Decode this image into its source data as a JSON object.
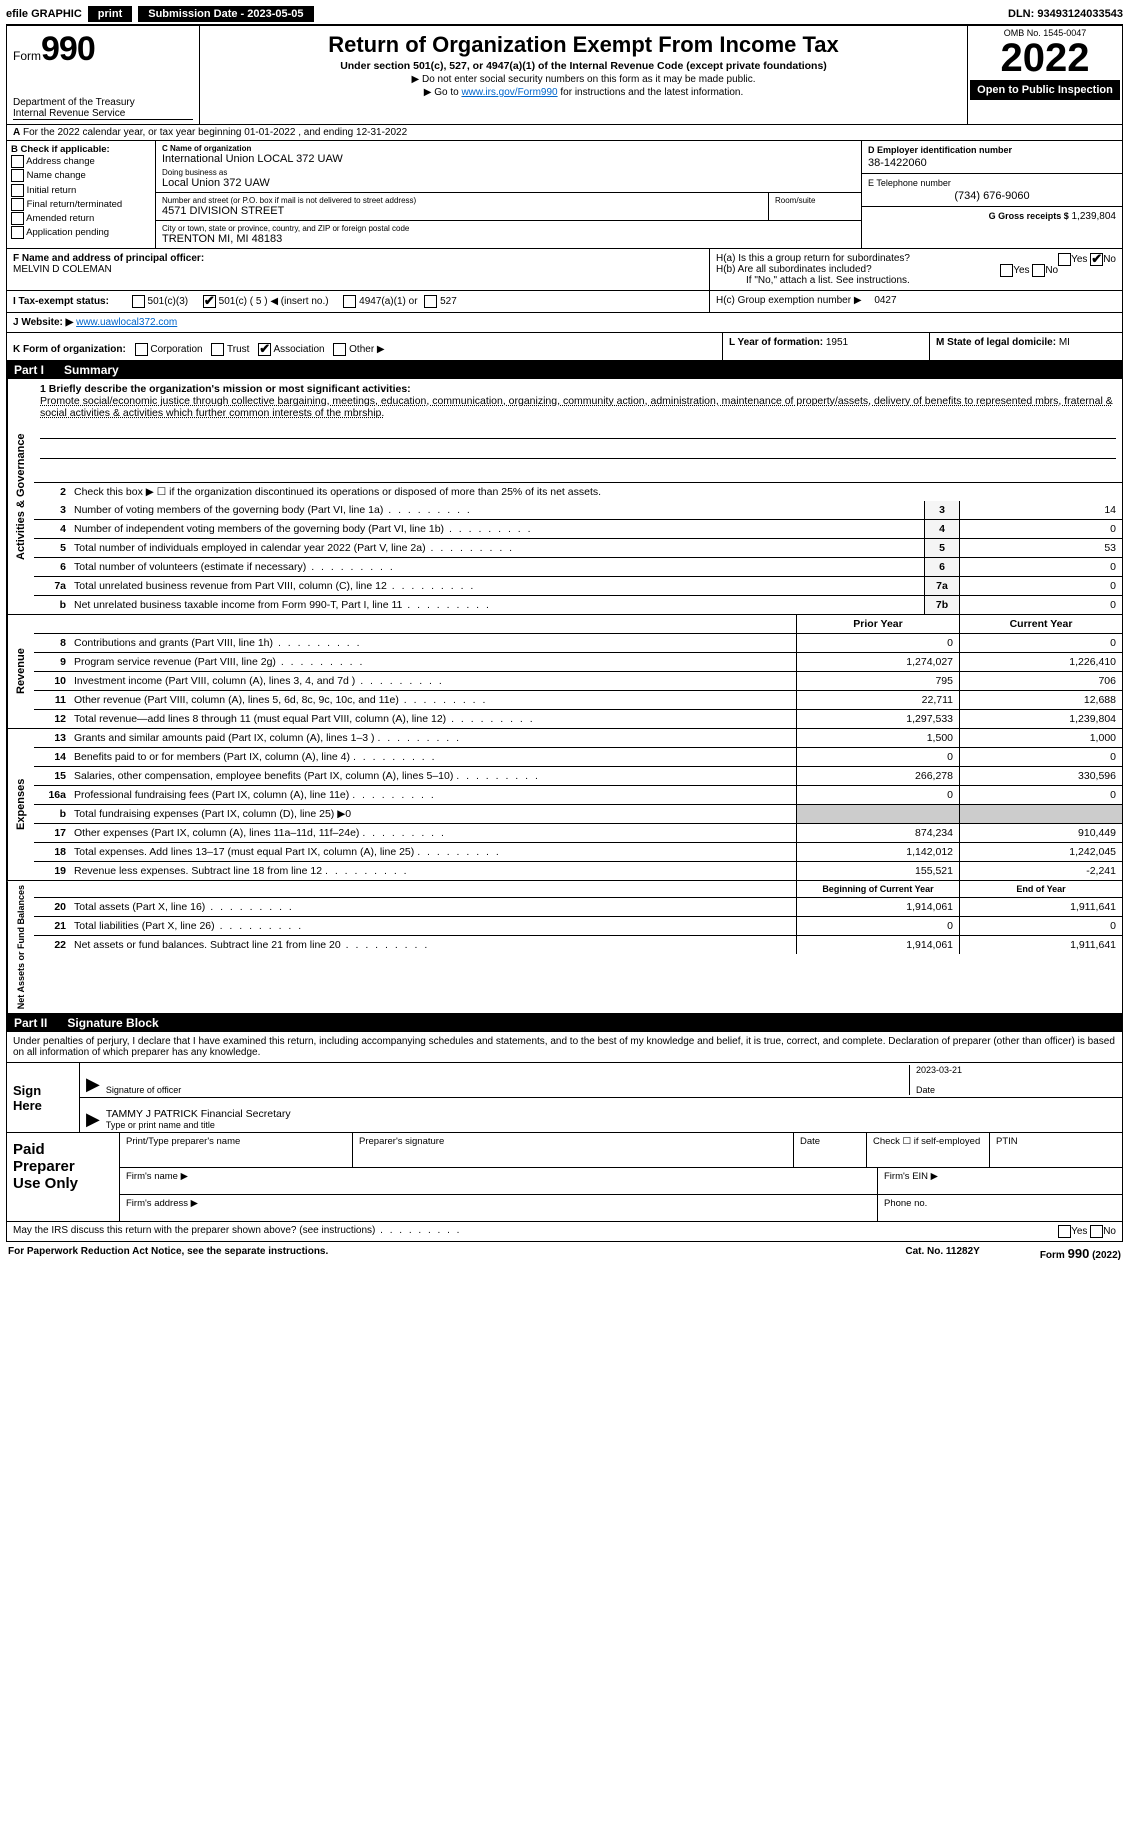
{
  "topbar": {
    "efile": "efile GRAPHIC",
    "print": "print",
    "submission_label": "Submission Date - 2023-05-05",
    "dln": "DLN: 93493124033543"
  },
  "header": {
    "form_word": "Form",
    "form_num": "990",
    "title": "Return of Organization Exempt From Income Tax",
    "subtitle": "Under section 501(c), 527, or 4947(a)(1) of the Internal Revenue Code (except private foundations)",
    "note1": "▶ Do not enter social security numbers on this form as it may be made public.",
    "note2_pre": "▶ Go to ",
    "note2_link": "www.irs.gov/Form990",
    "note2_post": " for instructions and the latest information.",
    "dept1": "Department of the Treasury",
    "dept2": "Internal Revenue Service",
    "omb": "OMB No. 1545-0047",
    "year": "2022",
    "open": "Open to Public Inspection"
  },
  "rowA": {
    "label": "A",
    "text": "For the 2022 calendar year, or tax year beginning 01-01-2022     , and ending 12-31-2022"
  },
  "colB": {
    "label": "B Check if applicable:",
    "opts": [
      "Address change",
      "Name change",
      "Initial return",
      "Final return/terminated",
      "Amended return",
      "Application pending"
    ]
  },
  "colC": {
    "name_label": "C Name of organization",
    "name_val": "International Union LOCAL 372 UAW",
    "dba_label": "Doing business as",
    "dba_val": "Local Union 372 UAW",
    "addr_label": "Number and street (or P.O. box if mail is not delivered to street address)",
    "addr_val": "4571 DIVISION STREET",
    "room_label": "Room/suite",
    "city_label": "City or town, state or province, country, and ZIP or foreign postal code",
    "city_val": "TRENTON MI, MI  48183"
  },
  "colD": {
    "ein_label": "D Employer identification number",
    "ein_val": "38-1422060",
    "tel_label": "E Telephone number",
    "tel_val": "(734) 676-9060",
    "gross_label": "G Gross receipts $",
    "gross_val": "1,239,804"
  },
  "rowF": {
    "label": "F  Name and address of principal officer:",
    "val": "MELVIN D COLEMAN"
  },
  "rowH": {
    "a": "H(a)  Is this a group return for subordinates?",
    "b": "H(b)  Are all subordinates included?",
    "b_note": "If \"No,\" attach a list. See instructions.",
    "c": "H(c)  Group exemption number ▶",
    "c_val": "0427"
  },
  "rowI": {
    "label": "I   Tax-exempt status:",
    "opt1": "501(c)(3)",
    "opt2": "501(c) ( 5 ) ◀ (insert no.)",
    "opt3": "4947(a)(1) or",
    "opt4": "527"
  },
  "rowJ": {
    "label": "J   Website: ▶",
    "val": "www.uawlocal372.com"
  },
  "rowK": {
    "label": "K Form of organization:",
    "opts": [
      "Corporation",
      "Trust",
      "Association",
      "Other ▶"
    ],
    "checked": 2
  },
  "rowL": {
    "label": "L Year of formation:",
    "val": "1951"
  },
  "rowM": {
    "label": "M State of legal domicile:",
    "val": "MI"
  },
  "part1": {
    "num": "Part I",
    "title": "Summary"
  },
  "governance": {
    "side": "Activities & Governance",
    "line1_label": "1  Briefly describe the organization's mission or most significant activities:",
    "line1_text": "Promote social/economic justice through collective bargaining, meetings, education, communication, organizing, community action, administration, maintenance of property/assets, delivery of benefits to represented mbrs, fraternal & social activities & activities which further common interests of the mbrship.",
    "line2": "Check this box ▶ ☐  if the organization discontinued its operations or disposed of more than 25% of its net assets.",
    "rows": [
      {
        "n": "3",
        "t": "Number of voting members of the governing body (Part VI, line 1a)",
        "b": "3",
        "v": "14"
      },
      {
        "n": "4",
        "t": "Number of independent voting members of the governing body (Part VI, line 1b)",
        "b": "4",
        "v": "0"
      },
      {
        "n": "5",
        "t": "Total number of individuals employed in calendar year 2022 (Part V, line 2a)",
        "b": "5",
        "v": "53"
      },
      {
        "n": "6",
        "t": "Total number of volunteers (estimate if necessary)",
        "b": "6",
        "v": "0"
      },
      {
        "n": "7a",
        "t": "Total unrelated business revenue from Part VIII, column (C), line 12",
        "b": "7a",
        "v": "0"
      },
      {
        "n": "b",
        "t": "Net unrelated business taxable income from Form 990-T, Part I, line 11",
        "b": "7b",
        "v": "0"
      }
    ]
  },
  "cols": {
    "prior": "Prior Year",
    "current": "Current Year"
  },
  "revenue": {
    "side": "Revenue",
    "rows": [
      {
        "n": "8",
        "t": "Contributions and grants (Part VIII, line 1h)",
        "p": "0",
        "c": "0"
      },
      {
        "n": "9",
        "t": "Program service revenue (Part VIII, line 2g)",
        "p": "1,274,027",
        "c": "1,226,410"
      },
      {
        "n": "10",
        "t": "Investment income (Part VIII, column (A), lines 3, 4, and 7d )",
        "p": "795",
        "c": "706"
      },
      {
        "n": "11",
        "t": "Other revenue (Part VIII, column (A), lines 5, 6d, 8c, 9c, 10c, and 11e)",
        "p": "22,711",
        "c": "12,688"
      },
      {
        "n": "12",
        "t": "Total revenue—add lines 8 through 11 (must equal Part VIII, column (A), line 12)",
        "p": "1,297,533",
        "c": "1,239,804"
      }
    ]
  },
  "expenses": {
    "side": "Expenses",
    "rows": [
      {
        "n": "13",
        "t": "Grants and similar amounts paid (Part IX, column (A), lines 1–3 )",
        "p": "1,500",
        "c": "1,000"
      },
      {
        "n": "14",
        "t": "Benefits paid to or for members (Part IX, column (A), line 4)",
        "p": "0",
        "c": "0"
      },
      {
        "n": "15",
        "t": "Salaries, other compensation, employee benefits (Part IX, column (A), lines 5–10)",
        "p": "266,278",
        "c": "330,596"
      },
      {
        "n": "16a",
        "t": "Professional fundraising fees (Part IX, column (A), line 11e)",
        "p": "0",
        "c": "0"
      },
      {
        "n": "b",
        "t": "Total fundraising expenses (Part IX, column (D), line 25) ▶0",
        "p": "",
        "c": "",
        "shade": true
      },
      {
        "n": "17",
        "t": "Other expenses (Part IX, column (A), lines 11a–11d, 11f–24e)",
        "p": "874,234",
        "c": "910,449"
      },
      {
        "n": "18",
        "t": "Total expenses. Add lines 13–17 (must equal Part IX, column (A), line 25)",
        "p": "1,142,012",
        "c": "1,242,045"
      },
      {
        "n": "19",
        "t": "Revenue less expenses. Subtract line 18 from line 12",
        "p": "155,521",
        "c": "-2,241"
      }
    ]
  },
  "netassets": {
    "side": "Net Assets or Fund Balances",
    "header_p": "Beginning of Current Year",
    "header_c": "End of Year",
    "rows": [
      {
        "n": "20",
        "t": "Total assets (Part X, line 16)",
        "p": "1,914,061",
        "c": "1,911,641"
      },
      {
        "n": "21",
        "t": "Total liabilities (Part X, line 26)",
        "p": "0",
        "c": "0"
      },
      {
        "n": "22",
        "t": "Net assets or fund balances. Subtract line 21 from line 20",
        "p": "1,914,061",
        "c": "1,911,641"
      }
    ]
  },
  "part2": {
    "num": "Part II",
    "title": "Signature Block"
  },
  "sig": {
    "intro": "Under penalties of perjury, I declare that I have examined this return, including accompanying schedules and statements, and to the best of my knowledge and belief, it is true, correct, and complete. Declaration of preparer (other than officer) is based on all information of which preparer has any knowledge.",
    "sign": "Sign",
    "here": "Here",
    "sig_of_officer": "Signature of officer",
    "date_lbl": "Date",
    "date_val": "2023-03-21",
    "name_val": "TAMMY J PATRICK  Financial Secretary",
    "name_lbl": "Type or print name and title"
  },
  "paid": {
    "title1": "Paid",
    "title2": "Preparer",
    "title3": "Use Only",
    "h1": "Print/Type preparer's name",
    "h2": "Preparer's signature",
    "h3": "Date",
    "h4_pre": "Check ☐ if self-employed",
    "h5": "PTIN",
    "firm_name": "Firm's name    ▶",
    "firm_ein": "Firm's EIN ▶",
    "firm_addr": "Firm's address ▶",
    "phone": "Phone no."
  },
  "footer": {
    "discuss": "May the IRS discuss this return with the preparer shown above? (see instructions)",
    "paperwork": "For Paperwork Reduction Act Notice, see the separate instructions.",
    "cat": "Cat. No. 11282Y",
    "form": "Form 990 (2022)"
  }
}
